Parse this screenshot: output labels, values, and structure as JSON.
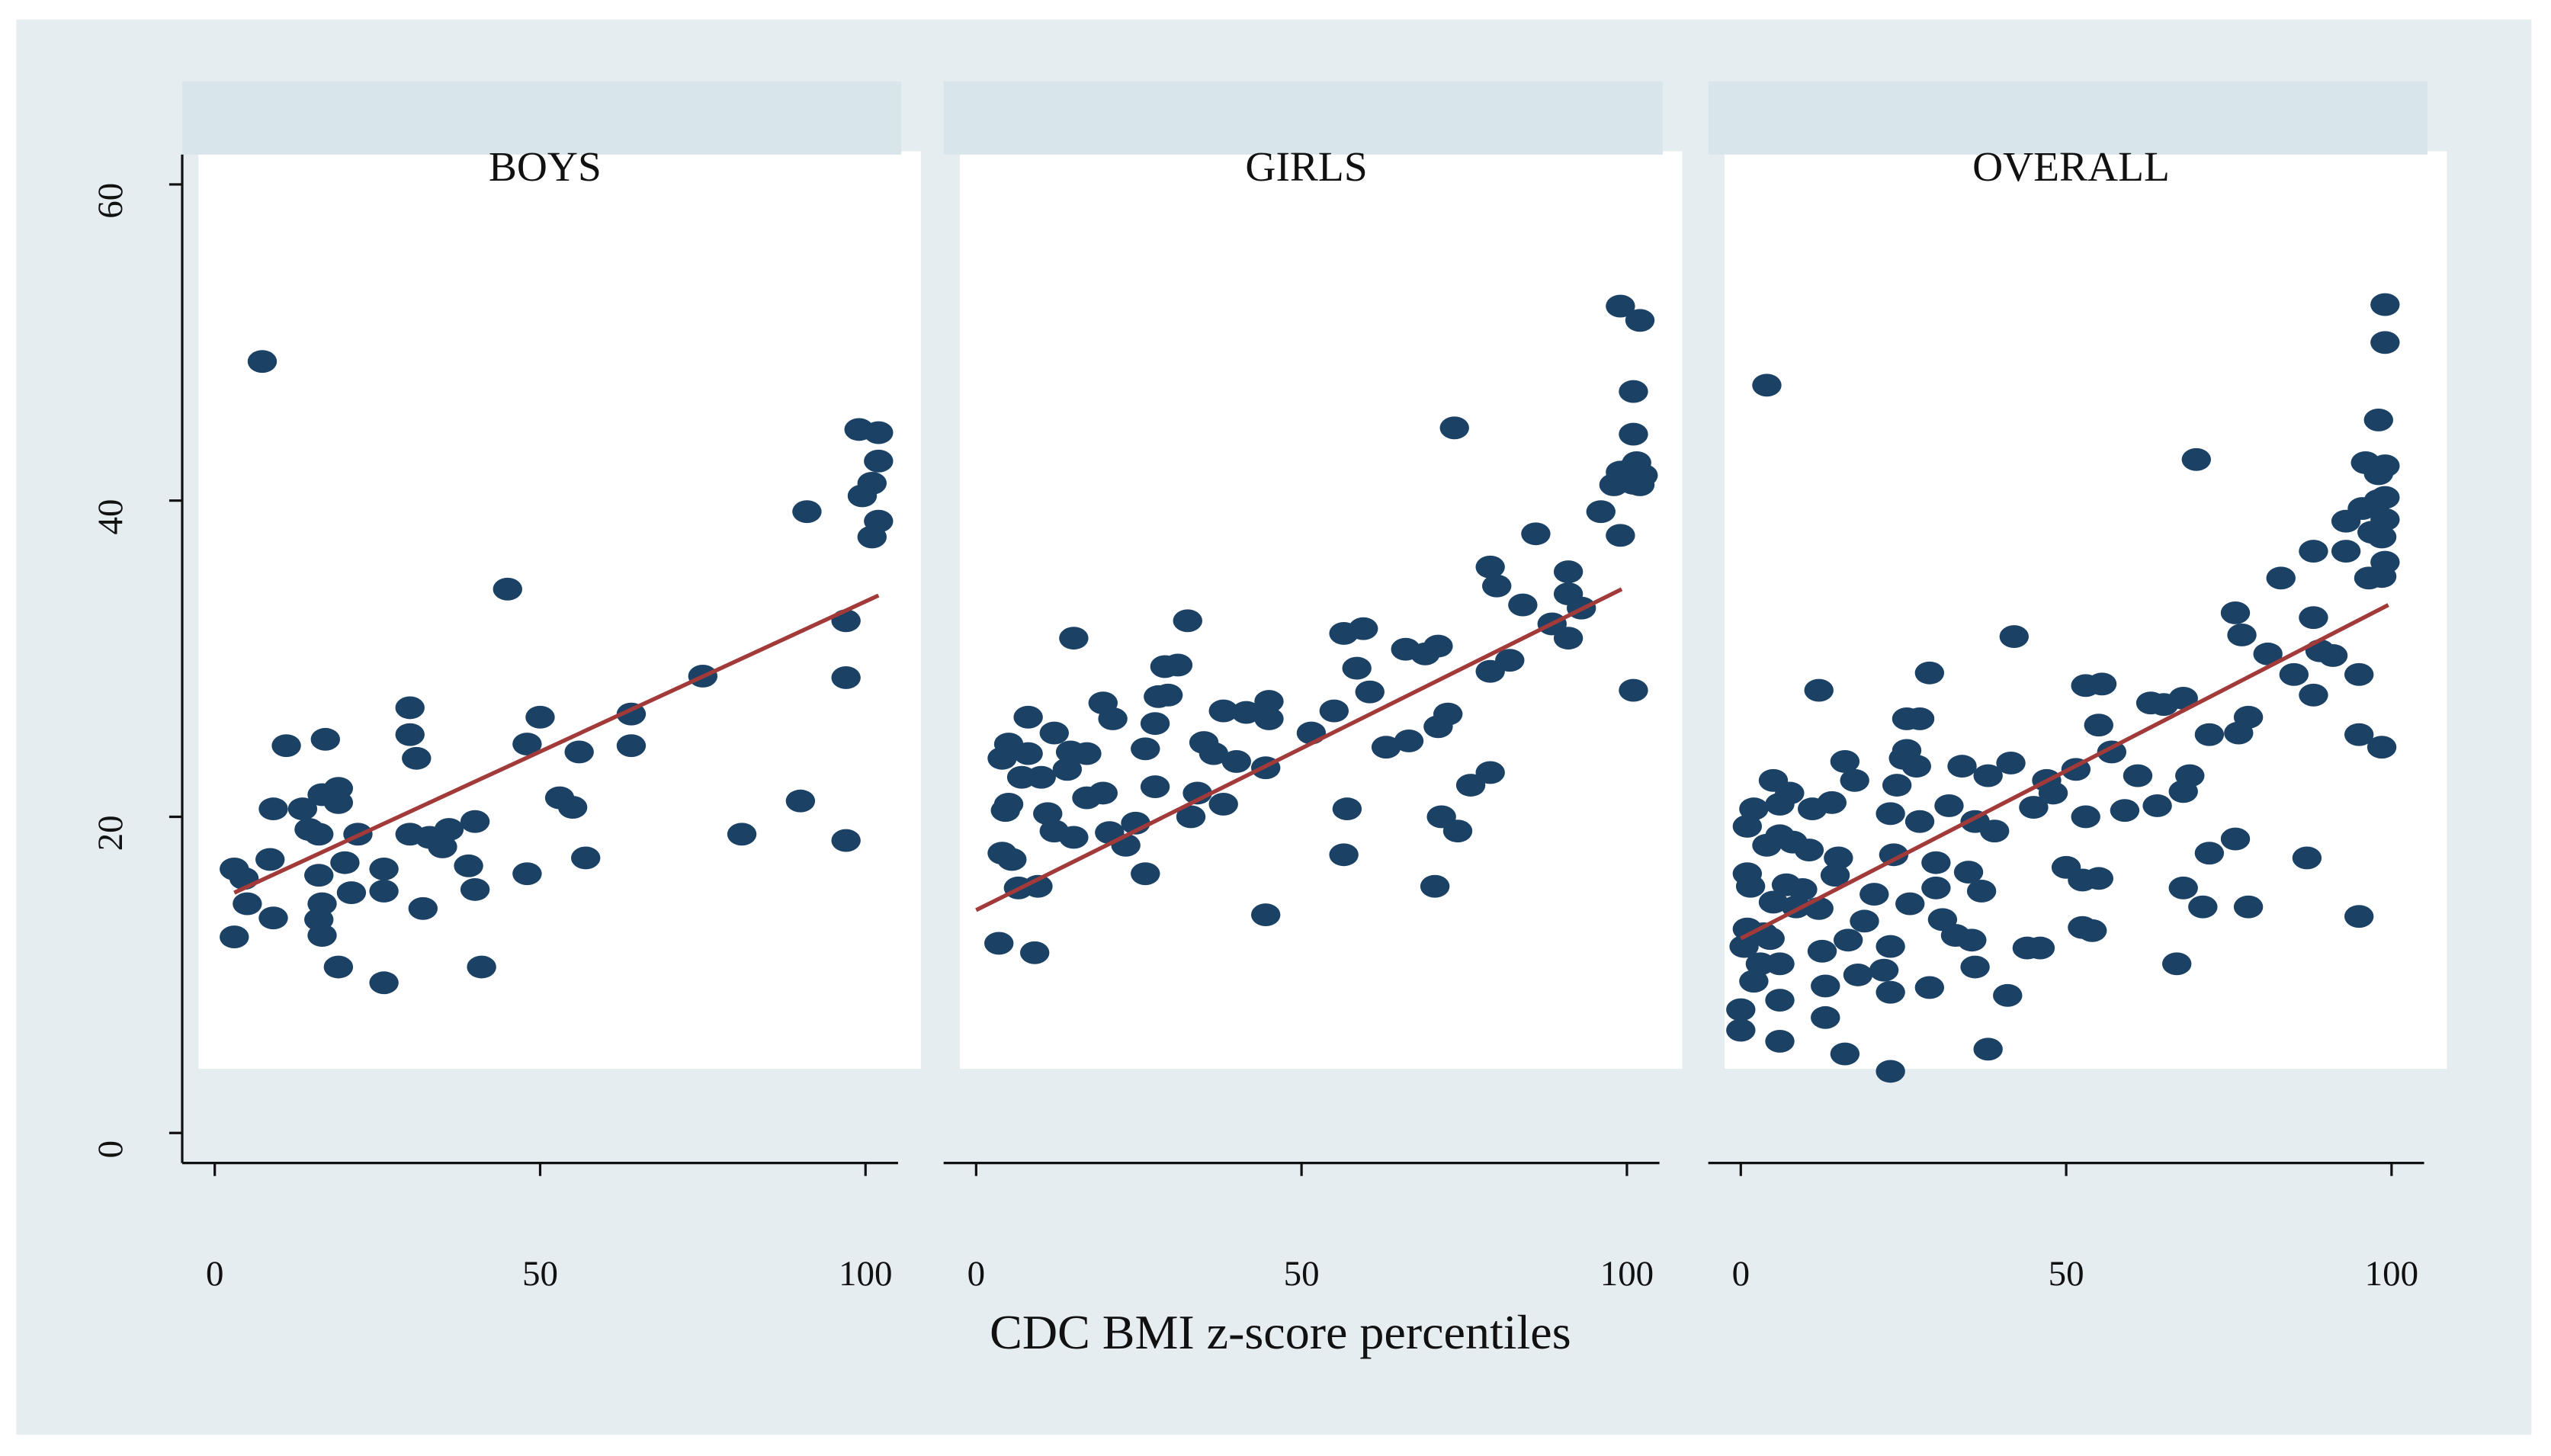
{
  "x_axis_label": "CDC BMI z-score percentiles",
  "chart_data": [
    {
      "type": "scatter",
      "title": "BOYS",
      "color": "#1b4165",
      "xlim": [
        -5,
        105
      ],
      "ylim": [
        -2,
        62
      ],
      "xticks": [
        0,
        50,
        100
      ],
      "yticks": [
        0,
        20,
        40,
        60
      ],
      "x": [
        7.3,
        3,
        4.5,
        5,
        3,
        8.5,
        9,
        9,
        11,
        13.5,
        14.5,
        16,
        17,
        16.5,
        19,
        19,
        16,
        16,
        16.5,
        16.5,
        19,
        21,
        20,
        22,
        26,
        26,
        26,
        30,
        30,
        31,
        30,
        32,
        33,
        35,
        36,
        39,
        40,
        40,
        41,
        45,
        48,
        48,
        50,
        53,
        55,
        56,
        57,
        64,
        64,
        75,
        81,
        90,
        91,
        97,
        97,
        97,
        99,
        102,
        102,
        101,
        99.5,
        102,
        101
      ],
      "values": [
        48.8,
        16.7,
        16.1,
        14.5,
        12.4,
        17.3,
        13.6,
        20.5,
        24.5,
        20.5,
        19.2,
        18.9,
        24.9,
        21.4,
        21.8,
        20.9,
        16.3,
        13.5,
        14.5,
        12.5,
        10.5,
        15.2,
        17.1,
        18.9,
        9.5,
        15.3,
        16.7,
        26.9,
        25.2,
        23.7,
        18.9,
        14.2,
        18.7,
        18.1,
        19.2,
        16.9,
        15.4,
        19.7,
        10.5,
        34.4,
        24.6,
        16.4,
        26.3,
        21.2,
        20.6,
        24.1,
        17.4,
        26.5,
        24.5,
        28.9,
        18.9,
        21.0,
        39.3,
        28.8,
        32.4,
        18.5,
        44.5,
        44.3,
        42.5,
        41.1,
        40.3,
        38.7,
        37.7
      ],
      "fit": {
        "color": "#a23a3a",
        "x": [
          3,
          102
        ],
        "values": [
          15.2,
          34.0
        ]
      }
    },
    {
      "type": "scatter",
      "title": "GIRLS",
      "color": "#1b4165",
      "xlim": [
        -5,
        105
      ],
      "ylim": [
        -2,
        62
      ],
      "xticks": [
        0,
        50,
        100
      ],
      "x": [
        3.5,
        9,
        4,
        5.5,
        6.5,
        9.5,
        4,
        5,
        5,
        4.5,
        7,
        8,
        8,
        10,
        11,
        12,
        14,
        14.5,
        15,
        12,
        15,
        17,
        17,
        19.5,
        19.5,
        21,
        20.5,
        23,
        24.5,
        26,
        26,
        27.5,
        28,
        29,
        29.5,
        31,
        32.5,
        27.5,
        33,
        34,
        35,
        36.5,
        38,
        38,
        40,
        41.5,
        44.5,
        44.5,
        45,
        45,
        51.5,
        55,
        56.5,
        59.5,
        56.5,
        57,
        58.5,
        60.5,
        63,
        66.5,
        66,
        69,
        71,
        70.5,
        71.5,
        71,
        72.5,
        73.5,
        74,
        76,
        79,
        79,
        80,
        79,
        82,
        84,
        86,
        88.5,
        91,
        91,
        91,
        93,
        96,
        99,
        102,
        98,
        99,
        101,
        101.5,
        101,
        102.5,
        102,
        99,
        101,
        101,
        101
      ],
      "values": [
        12.0,
        11.4,
        17.7,
        17.3,
        15.5,
        15.6,
        23.7,
        24.6,
        20.8,
        20.4,
        22.5,
        26.3,
        24.0,
        22.5,
        20.2,
        25.3,
        23.0,
        24.1,
        18.7,
        19.1,
        31.3,
        24.0,
        21.2,
        21.5,
        27.2,
        26.2,
        19.0,
        18.2,
        19.6,
        24.3,
        16.4,
        25.9,
        27.6,
        29.5,
        27.7,
        29.6,
        32.4,
        21.9,
        20.0,
        21.5,
        24.7,
        24.0,
        26.7,
        20.8,
        23.5,
        26.6,
        23.1,
        13.8,
        27.3,
        26.2,
        25.3,
        26.7,
        31.6,
        31.9,
        17.6,
        20.5,
        29.4,
        27.9,
        24.4,
        24.8,
        30.6,
        30.3,
        30.8,
        15.6,
        20.0,
        25.7,
        26.5,
        44.6,
        19.1,
        22.0,
        22.8,
        35.8,
        34.6,
        29.2,
        29.9,
        33.4,
        37.9,
        32.2,
        35.5,
        34.1,
        31.3,
        33.2,
        39.3,
        52.3,
        51.4,
        41.0,
        41.8,
        42.1,
        42.4,
        41.1,
        41.6,
        41.0,
        37.8,
        44.2,
        46.9,
        28.0
      ],
      "fit": {
        "color": "#a23a3a",
        "x": [
          0,
          99.2
        ],
        "values": [
          14.1,
          34.4
        ]
      }
    },
    {
      "type": "scatter",
      "title": "OVERALL",
      "color": "#1b4165",
      "xlim": [
        -5,
        105
      ],
      "ylim": [
        -2,
        62
      ],
      "xticks": [
        0,
        50,
        100
      ],
      "x": [
        0,
        0,
        0.5,
        1,
        1.5,
        1,
        1,
        2,
        2,
        3,
        4,
        3.5,
        4.5,
        5,
        4,
        5,
        6,
        6,
        6,
        6,
        6,
        7.5,
        8,
        7,
        8.5,
        9.5,
        10.5,
        11,
        12,
        12,
        12.5,
        13,
        13,
        14,
        14.5,
        15,
        16,
        16,
        16.5,
        17.5,
        18,
        19,
        20.5,
        22,
        23,
        23,
        23,
        23,
        23.5,
        24,
        25,
        25.5,
        25.5,
        26,
        27,
        27.5,
        27.5,
        29,
        29,
        30,
        30,
        31,
        32,
        33,
        34,
        35,
        35.5,
        36,
        36,
        37,
        38,
        38,
        39,
        41,
        41.5,
        42,
        44,
        45,
        46,
        47,
        48,
        50,
        51.5,
        52.5,
        53,
        52.5,
        54,
        55,
        53,
        55.5,
        55,
        57,
        59,
        61,
        63,
        64,
        65,
        67,
        68,
        68,
        68,
        69,
        70,
        71,
        72,
        72,
        76,
        76,
        76.5,
        77,
        78,
        78,
        81,
        83,
        85,
        87,
        88,
        88,
        88,
        89,
        91,
        93,
        93,
        95,
        95,
        95,
        95.5,
        96,
        96.5,
        97,
        98,
        98,
        98,
        98.5,
        98.5,
        99,
        99,
        99,
        99,
        99,
        99,
        98.5
      ],
      "values": [
        7.8,
        6.5,
        11.8,
        12.9,
        15.6,
        16.4,
        19.4,
        20.5,
        9.6,
        10.7,
        47.3,
        12.6,
        12.3,
        14.6,
        18.2,
        22.3,
        18.8,
        20.8,
        8.4,
        5.8,
        10.7,
        21.5,
        18.4,
        15.7,
        14.3,
        15.4,
        17.9,
        20.5,
        28.0,
        14.2,
        11.5,
        9.3,
        7.3,
        20.9,
        16.3,
        17.4,
        23.5,
        5.0,
        12.2,
        22.3,
        10.0,
        13.4,
        15.1,
        10.3,
        11.8,
        20.2,
        8.9,
        3.9,
        17.6,
        22.0,
        23.7,
        26.2,
        24.2,
        14.5,
        23.2,
        26.2,
        19.7,
        29.1,
        9.2,
        15.5,
        17.1,
        13.5,
        20.7,
        12.5,
        23.2,
        16.5,
        12.2,
        10.5,
        19.7,
        15.3,
        22.6,
        5.3,
        19.1,
        8.7,
        23.4,
        31.4,
        11.7,
        20.6,
        11.7,
        22.3,
        21.5,
        16.8,
        23.0,
        16.0,
        20.0,
        13.0,
        12.8,
        16.1,
        28.3,
        28.4,
        25.8,
        24.1,
        20.4,
        22.6,
        27.2,
        20.7,
        27.1,
        10.7,
        15.5,
        21.6,
        27.5,
        22.6,
        42.6,
        14.3,
        17.7,
        25.2,
        18.6,
        32.9,
        25.3,
        31.5,
        26.3,
        14.3,
        30.3,
        35.1,
        29.0,
        17.4,
        36.8,
        32.6,
        27.7,
        30.5,
        30.2,
        36.8,
        38.7,
        29.0,
        25.2,
        13.7,
        39.5,
        42.4,
        35.1,
        38.0,
        40.0,
        45.1,
        41.7,
        35.2,
        24.4,
        52.4,
        50.0,
        36.1,
        38.8,
        40.2,
        42.2,
        37.7
      ],
      "fit": {
        "color": "#a23a3a",
        "x": [
          0,
          99.5
        ],
        "values": [
          12.3,
          33.4
        ]
      }
    }
  ]
}
